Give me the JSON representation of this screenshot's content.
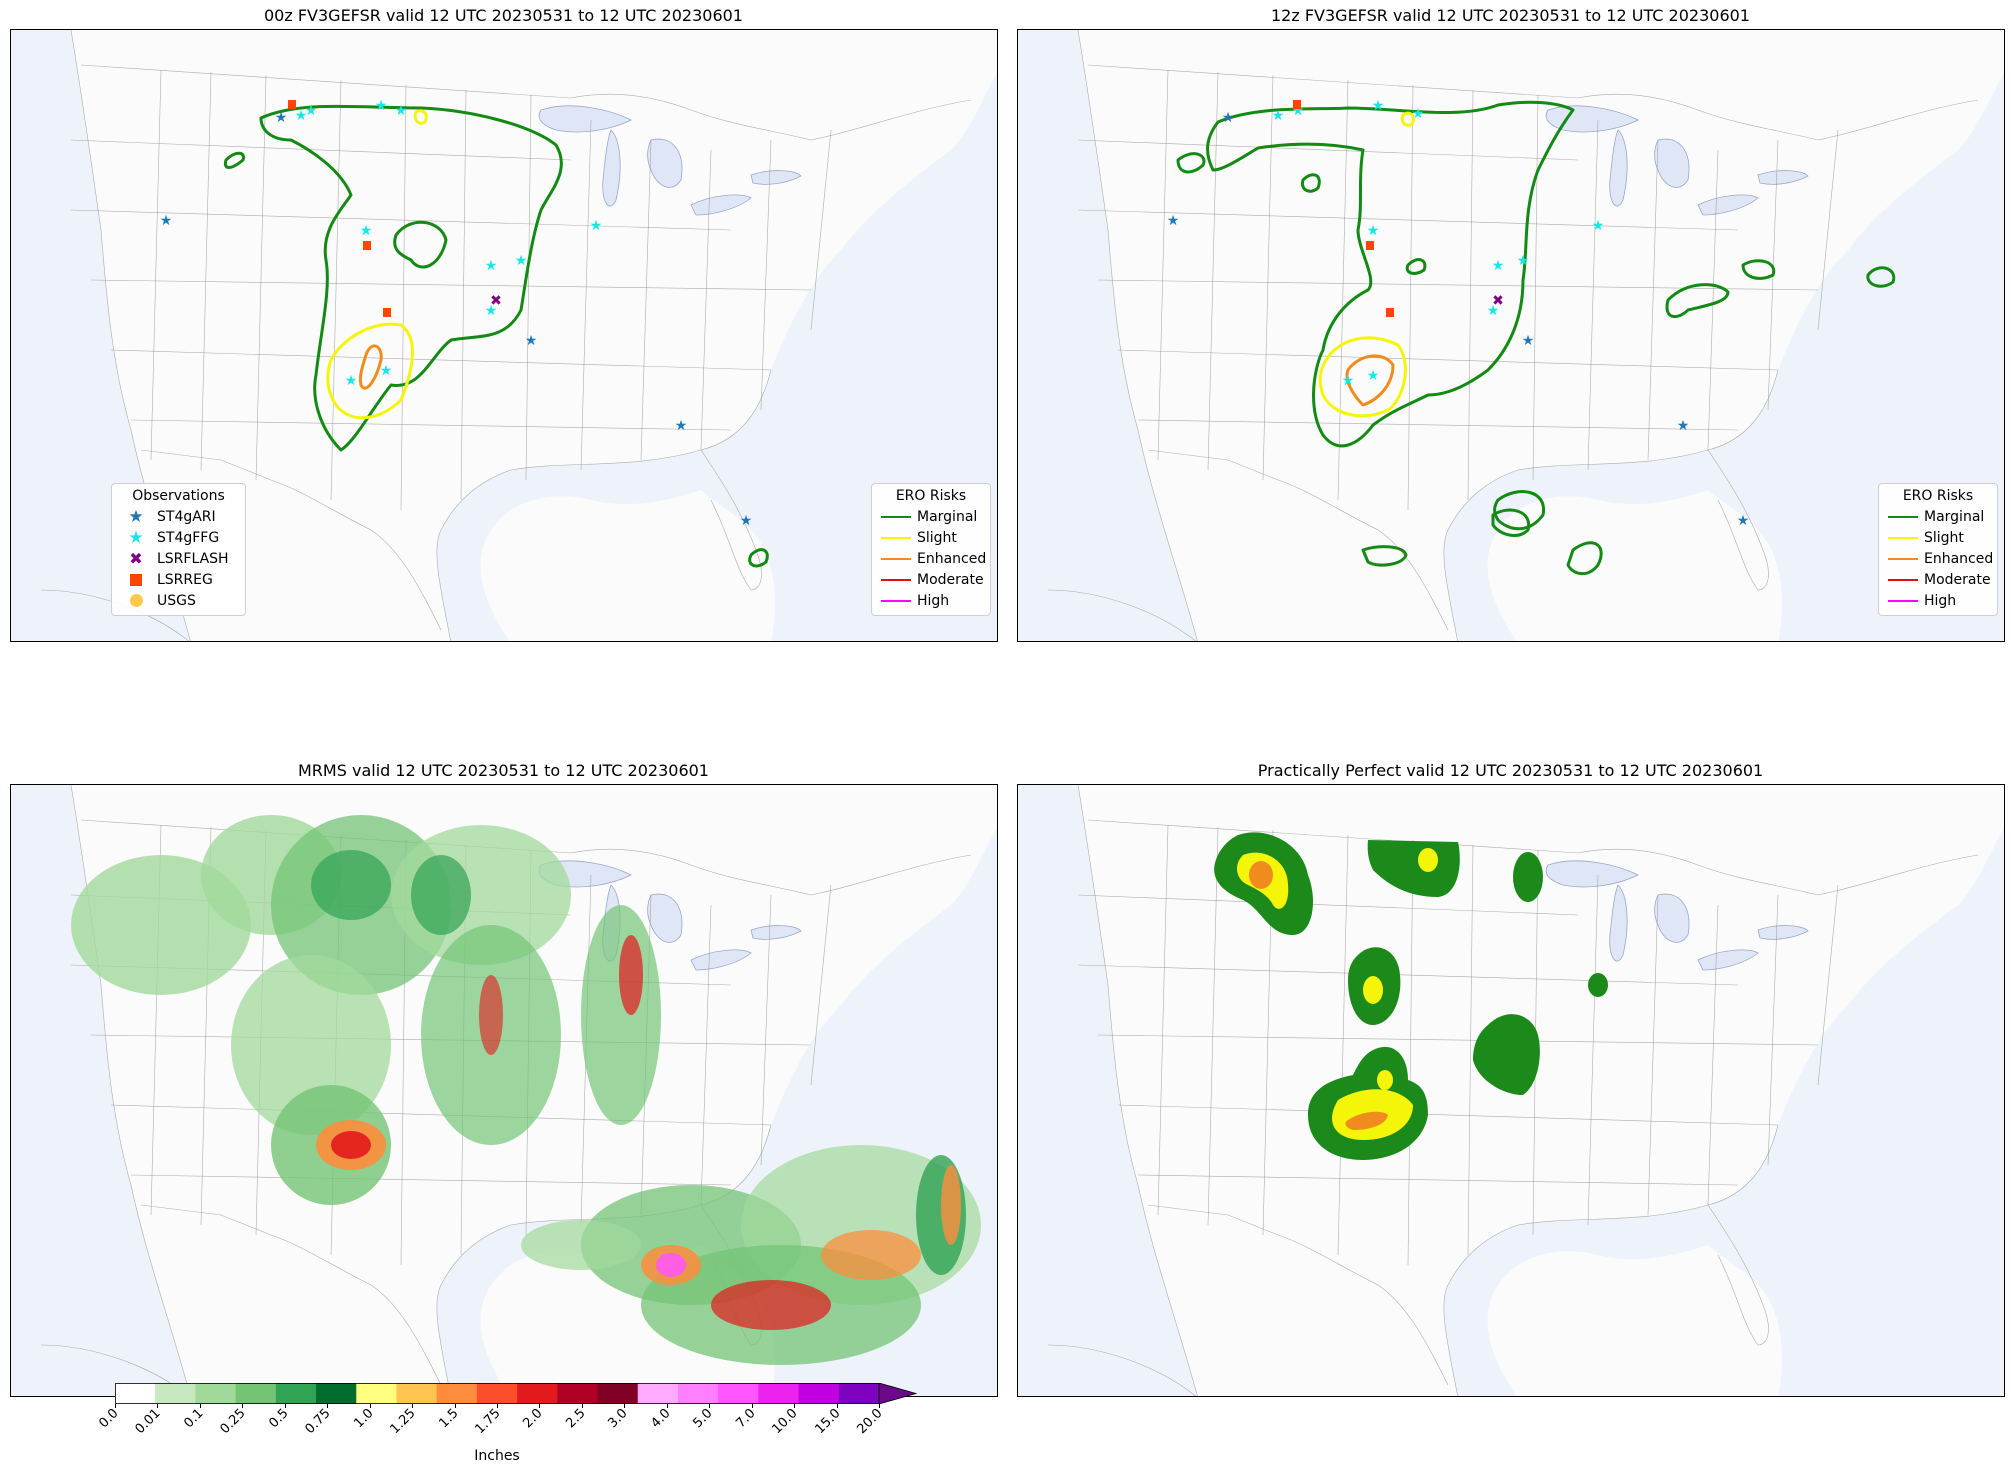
{
  "panels": [
    {
      "id": "p00z",
      "title": "00z FV3GEFSR valid 12 UTC 20230531 to 12 UTC 20230601"
    },
    {
      "id": "p12z",
      "title": "12z FV3GEFSR valid 12 UTC 20230531 to 12 UTC 20230601"
    },
    {
      "id": "pmrms",
      "title": "MRMS valid 12 UTC 20230531 to 12 UTC 20230601"
    },
    {
      "id": "ppp",
      "title": "Practically Perfect valid 12 UTC 20230531 to 12 UTC 20230601"
    }
  ],
  "observations_legend": {
    "title": "Observations",
    "items": [
      {
        "label": "ST4gARI",
        "symbol": "star",
        "color": "#1f77b4"
      },
      {
        "label": "ST4gFFG",
        "symbol": "star",
        "color": "#17e6e6"
      },
      {
        "label": "LSRFLASH",
        "symbol": "x",
        "color": "#800080"
      },
      {
        "label": "LSRREG",
        "symbol": "square",
        "color": "#ff4500"
      },
      {
        "label": "USGS",
        "symbol": "circle",
        "color": "#ffc94d"
      }
    ]
  },
  "ero_legend": {
    "title": "ERO Risks",
    "items": [
      {
        "label": "Marginal",
        "color": "#138a13"
      },
      {
        "label": "Slight",
        "color": "#f5f50a"
      },
      {
        "label": "Enhanced",
        "color": "#f08c1e"
      },
      {
        "label": "Moderate",
        "color": "#e01010"
      },
      {
        "label": "High",
        "color": "#ff00ff"
      }
    ]
  },
  "colorbar": {
    "label": "Inches",
    "ticks": [
      "0.0",
      "0.01",
      "0.1",
      "0.25",
      "0.5",
      "0.75",
      "1.0",
      "1.25",
      "1.5",
      "1.75",
      "2.0",
      "2.5",
      "3.0",
      "4.0",
      "5.0",
      "7.0",
      "10.0",
      "15.0",
      "20.0"
    ],
    "colors": [
      "#ffffff",
      "#c7e9c0",
      "#a1d99b",
      "#74c476",
      "#31a354",
      "#006d2c",
      "#ffff80",
      "#fec44f",
      "#fd8d3c",
      "#fc4e2a",
      "#e31a1c",
      "#b10026",
      "#800026",
      "#ffaaff",
      "#ff80ff",
      "#ff55ff",
      "#ee22ee",
      "#c000e0",
      "#8000c0"
    ],
    "extend_color": "#6a0a8a"
  },
  "colors": {
    "land": "#fbfbfb",
    "water": "#eef3fb",
    "lake": "#dfe7f7",
    "border": "#8a8a8a"
  }
}
